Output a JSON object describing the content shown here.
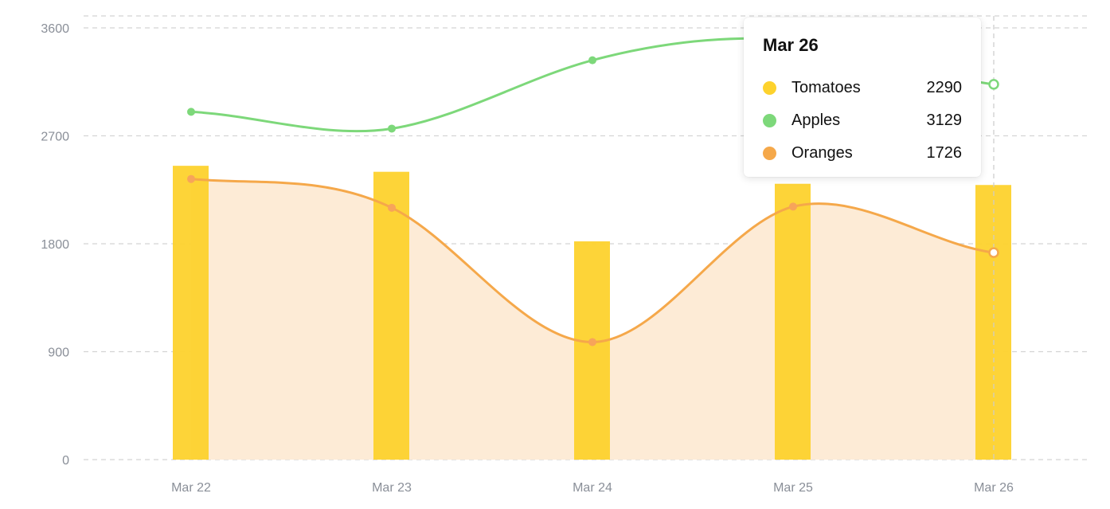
{
  "colors": {
    "tomatoes": "#fdd22d",
    "apples": "#7dd87a",
    "oranges": "#f5a84a",
    "oranges_fill": "#fdebd6",
    "grid": "#d4d4d4",
    "axis_text": "#8a8f98"
  },
  "chart_data": {
    "type": "bar",
    "categories": [
      "Mar 22",
      "Mar 23",
      "Mar 24",
      "Mar 25",
      "Mar 26"
    ],
    "y_ticks": [
      0,
      900,
      1800,
      2700,
      3600
    ],
    "ylim": [
      0,
      3600
    ],
    "grid": true,
    "series": [
      {
        "name": "Tomatoes",
        "type": "bar",
        "values": [
          2450,
          2400,
          1820,
          2300,
          2290
        ]
      },
      {
        "name": "Apples",
        "type": "line",
        "values": [
          2900,
          2760,
          3330,
          3500,
          3129
        ]
      },
      {
        "name": "Oranges",
        "type": "area",
        "values": [
          2340,
          2100,
          980,
          2110,
          1726
        ]
      }
    ]
  },
  "tooltip": {
    "title": "Mar 26",
    "rows": [
      {
        "name": "Tomatoes",
        "value": "2290"
      },
      {
        "name": "Apples",
        "value": "3129"
      },
      {
        "name": "Oranges",
        "value": "1726"
      }
    ]
  }
}
